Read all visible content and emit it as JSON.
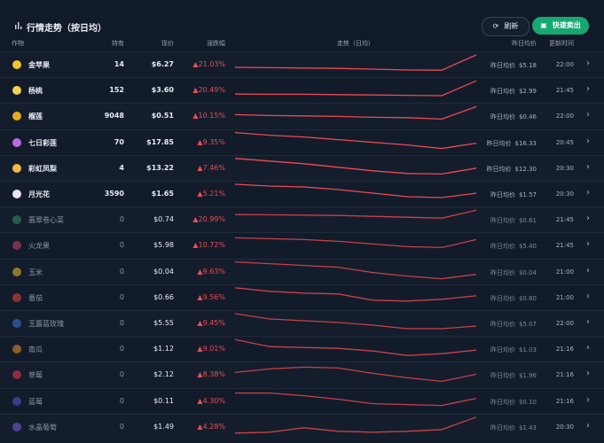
{
  "header": {
    "title": "行情走势（按日均）",
    "refresh": "刷新",
    "sell": "快速卖出"
  },
  "columns": {
    "crop": "作物",
    "held": "持有",
    "price": "现价",
    "change": "涨跌幅",
    "trend": "走势（日均）",
    "prev": "昨日均价",
    "time": "更新时间"
  },
  "prev_label": "昨日均价",
  "rows": [
    {
      "name": "金苹果",
      "held": "14",
      "price": "$6.27",
      "change": "▲21.03%",
      "prev": "$5.18",
      "time": "22:00",
      "trend": [
        30,
        28,
        26,
        24,
        20,
        15,
        14,
        100
      ]
    },
    {
      "name": "杨桃",
      "held": "152",
      "price": "$3.60",
      "change": "▲20.49%",
      "prev": "$2.99",
      "time": "21:45",
      "trend": [
        25,
        24,
        24,
        22,
        20,
        18,
        16,
        100
      ]
    },
    {
      "name": "榴莲",
      "held": "9048",
      "price": "$0.51",
      "change": "▲10.15%",
      "prev": "$0.46",
      "time": "22:00",
      "trend": [
        55,
        50,
        48,
        45,
        40,
        38,
        30,
        100
      ]
    },
    {
      "name": "七日彩莲",
      "held": "70",
      "price": "$17.85",
      "change": "▲9.35%",
      "prev": "$16.33",
      "time": "20:45",
      "trend": [
        100,
        85,
        75,
        60,
        45,
        30,
        10,
        40
      ]
    },
    {
      "name": "彩虹凤梨",
      "held": "4",
      "price": "$13.22",
      "change": "▲7.46%",
      "prev": "$12.30",
      "time": "20:30",
      "trend": [
        100,
        85,
        70,
        50,
        30,
        15,
        12,
        45
      ]
    },
    {
      "name": "月光花",
      "held": "3590",
      "price": "$1.65",
      "change": "▲5.21%",
      "prev": "$1.57",
      "time": "20:30",
      "trend": [
        100,
        90,
        85,
        70,
        50,
        30,
        25,
        50
      ]
    },
    {
      "name": "翡翠卷心菜",
      "held": "0",
      "price": "$0.74",
      "change": "▲20.99%",
      "prev": "$0.61",
      "time": "21:45",
      "trend": [
        75,
        74,
        72,
        70,
        65,
        60,
        55,
        100
      ]
    },
    {
      "name": "火龙果",
      "held": "0",
      "price": "$5.98",
      "change": "▲10.72%",
      "prev": "$5.40",
      "time": "21:45",
      "trend": [
        90,
        85,
        80,
        70,
        55,
        40,
        35,
        80
      ]
    },
    {
      "name": "玉米",
      "held": "0",
      "price": "$0.04",
      "change": "▲9.63%",
      "prev": "$0.04",
      "time": "21:00",
      "trend": [
        100,
        90,
        80,
        70,
        40,
        20,
        5,
        30
      ]
    },
    {
      "name": "番茄",
      "held": "0",
      "price": "$0.66",
      "change": "▲9.56%",
      "prev": "$0.60",
      "time": "21:00",
      "trend": [
        100,
        80,
        70,
        65,
        30,
        25,
        35,
        55
      ]
    },
    {
      "name": "玉露蓝玫瑰",
      "held": "0",
      "price": "$5.55",
      "change": "▲9.45%",
      "prev": "$5.07",
      "time": "22:00",
      "trend": [
        100,
        70,
        60,
        50,
        35,
        15,
        15,
        30
      ]
    },
    {
      "name": "南瓜",
      "held": "0",
      "price": "$1.12",
      "change": "▲9.01%",
      "prev": "$1.03",
      "time": "21:16",
      "trend": [
        100,
        60,
        55,
        50,
        35,
        10,
        20,
        40
      ]
    },
    {
      "name": "草莓",
      "held": "0",
      "price": "$2.12",
      "change": "▲8.38%",
      "prev": "$1.96",
      "time": "21:16",
      "trend": [
        60,
        80,
        90,
        85,
        55,
        30,
        10,
        50
      ]
    },
    {
      "name": "蓝莓",
      "held": "0",
      "price": "$0.11",
      "change": "▲4.30%",
      "prev": "$0.10",
      "time": "21:16",
      "trend": [
        90,
        90,
        75,
        55,
        30,
        25,
        20,
        60
      ]
    },
    {
      "name": "水晶葡萄",
      "held": "0",
      "price": "$1.49",
      "change": "▲4.28%",
      "prev": "$1.43",
      "time": "20:30",
      "trend": [
        10,
        15,
        40,
        20,
        15,
        20,
        30,
        100
      ]
    }
  ]
}
